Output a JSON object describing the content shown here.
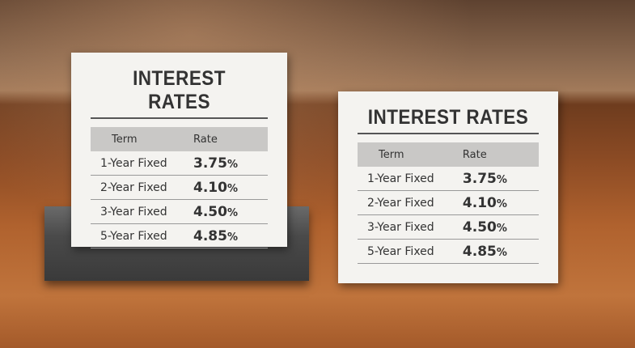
{
  "signs": [
    {
      "title": "INTEREST RATES",
      "table": {
        "header": [
          "Term",
          "Rate"
        ],
        "rows": [
          [
            "1-Year Fixed",
            "3.75%"
          ],
          [
            "2-Year Fixed",
            "4.10%"
          ],
          [
            "3-Year Fixed",
            "4.50%"
          ],
          [
            "5-Year Fixed",
            "4.85%"
          ]
        ]
      }
    },
    {
      "title": "INTEREST RATES",
      "table": {
        "header": [
          "Term",
          "Rate"
        ],
        "rows": [
          [
            "1-Year Fixed",
            "3.75%"
          ],
          [
            "2-Year Fixed",
            "4.10%"
          ],
          [
            "3-Year Fixed",
            "4.50%"
          ],
          [
            "5-Year Fixed",
            "4.85%"
          ]
        ]
      }
    }
  ]
}
